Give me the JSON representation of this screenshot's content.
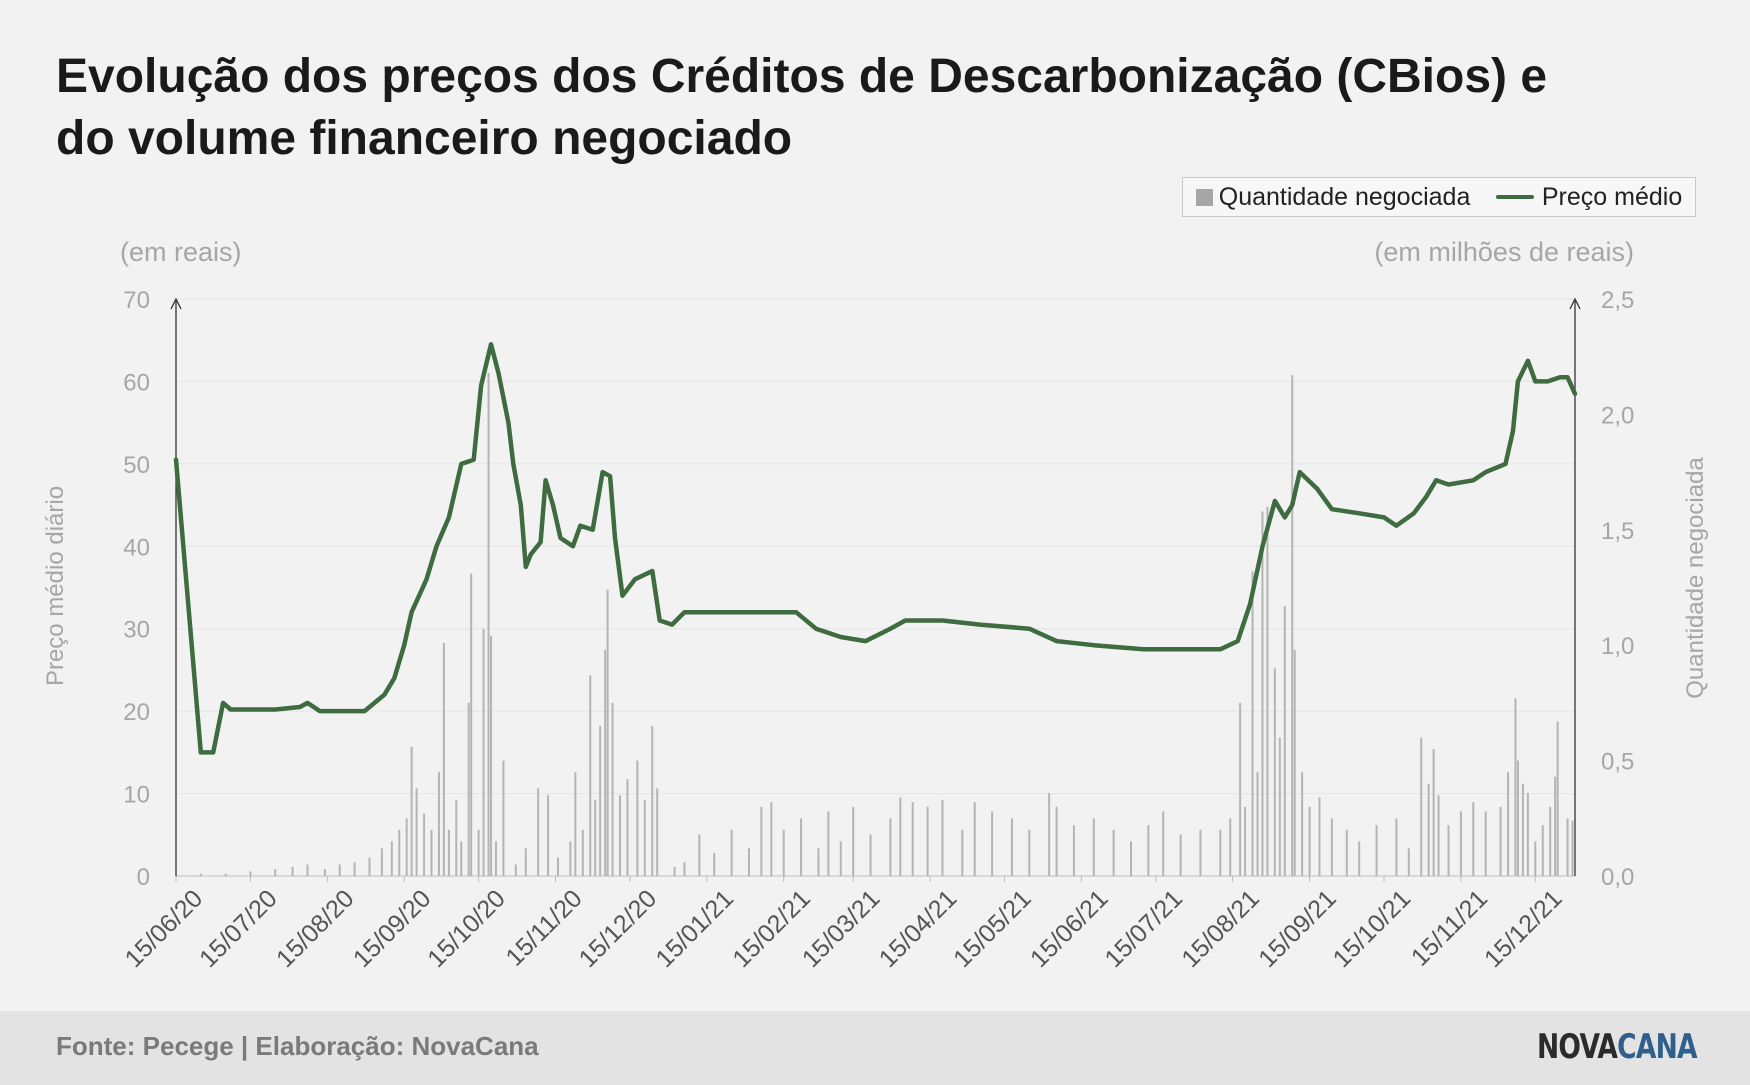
{
  "title": "Evolução dos preços dos Créditos de Descarbonização (CBios) e do volume financeiro negociado",
  "legend": {
    "bars": "Quantidade negociada",
    "line": "Preço médio"
  },
  "footer": {
    "source": "Fonte: Pecege | Elaboração: NovaCana",
    "logo_part1": "NOVA",
    "logo_part2": "CANA"
  },
  "colors": {
    "line": "#3f6b40",
    "bars": "#b4b4b4",
    "axis_text": "#a6a6a6"
  },
  "chart_data": {
    "type": "bar+line",
    "left_unit": "(em reais)",
    "right_unit": "(em milhões de reais)",
    "ylabel_left": "Preço médio diário",
    "ylabel_right": "Quantidade negociada",
    "ylim_left": [
      0,
      70
    ],
    "ylim_right": [
      0,
      2.5
    ],
    "yticks_left": [
      "0",
      "10",
      "20",
      "30",
      "40",
      "50",
      "60",
      "70"
    ],
    "yticks_right": [
      "0,0",
      "0,5",
      "1,0",
      "1,5",
      "2,0",
      "2,5"
    ],
    "x_range": [
      "2020-06-15",
      "2021-12-31"
    ],
    "xtick_labels": [
      "15/06/20",
      "15/07/20",
      "15/08/20",
      "15/09/20",
      "15/10/20",
      "15/11/20",
      "15/12/20",
      "15/01/21",
      "15/02/21",
      "15/03/21",
      "15/04/21",
      "15/05/21",
      "15/06/21",
      "15/07/21",
      "15/08/21",
      "15/09/21",
      "15/10/21",
      "15/11/21",
      "15/12/21"
    ],
    "xtick_dates": [
      "2020-06-15",
      "2020-07-15",
      "2020-08-15",
      "2020-09-15",
      "2020-10-15",
      "2020-11-15",
      "2020-12-15",
      "2021-01-15",
      "2021-02-15",
      "2021-03-15",
      "2021-04-15",
      "2021-05-15",
      "2021-06-15",
      "2021-07-15",
      "2021-08-15",
      "2021-09-15",
      "2021-10-15",
      "2021-11-15",
      "2021-12-15"
    ],
    "grid": true,
    "series": [
      {
        "name": "Preço médio",
        "axis": "left",
        "style": "line",
        "points": [
          [
            "2020-06-15",
            50.5
          ],
          [
            "2020-06-25",
            15.0
          ],
          [
            "2020-06-30",
            15.0
          ],
          [
            "2020-07-04",
            21.0
          ],
          [
            "2020-07-07",
            20.2
          ],
          [
            "2020-07-25",
            20.2
          ],
          [
            "2020-08-04",
            20.5
          ],
          [
            "2020-08-07",
            21.0
          ],
          [
            "2020-08-12",
            20.0
          ],
          [
            "2020-08-30",
            20.0
          ],
          [
            "2020-09-07",
            22.0
          ],
          [
            "2020-09-11",
            24.0
          ],
          [
            "2020-09-15",
            28.0
          ],
          [
            "2020-09-18",
            32.0
          ],
          [
            "2020-09-24",
            36.0
          ],
          [
            "2020-09-28",
            40.0
          ],
          [
            "2020-10-03",
            43.5
          ],
          [
            "2020-10-08",
            50.0
          ],
          [
            "2020-10-13",
            50.5
          ],
          [
            "2020-10-16",
            59.5
          ],
          [
            "2020-10-20",
            64.5
          ],
          [
            "2020-10-23",
            61.0
          ],
          [
            "2020-10-27",
            55.0
          ],
          [
            "2020-10-29",
            50.0
          ],
          [
            "2020-11-01",
            45.0
          ],
          [
            "2020-11-03",
            37.5
          ],
          [
            "2020-11-05",
            39.0
          ],
          [
            "2020-11-09",
            40.5
          ],
          [
            "2020-11-11",
            48.0
          ],
          [
            "2020-11-14",
            45.0
          ],
          [
            "2020-11-17",
            41.0
          ],
          [
            "2020-11-22",
            40.0
          ],
          [
            "2020-11-25",
            42.5
          ],
          [
            "2020-11-30",
            42.0
          ],
          [
            "2020-12-04",
            49.0
          ],
          [
            "2020-12-07",
            48.5
          ],
          [
            "2020-12-09",
            41.0
          ],
          [
            "2020-12-12",
            34.0
          ],
          [
            "2020-12-17",
            36.0
          ],
          [
            "2020-12-24",
            37.0
          ],
          [
            "2020-12-27",
            31.0
          ],
          [
            "2021-01-01",
            30.5
          ],
          [
            "2021-01-06",
            32.0
          ],
          [
            "2021-01-20",
            32.0
          ],
          [
            "2021-02-05",
            32.0
          ],
          [
            "2021-02-20",
            32.0
          ],
          [
            "2021-02-28",
            30.0
          ],
          [
            "2021-03-10",
            29.0
          ],
          [
            "2021-03-20",
            28.5
          ],
          [
            "2021-03-30",
            30.0
          ],
          [
            "2021-04-05",
            31.0
          ],
          [
            "2021-04-20",
            31.0
          ],
          [
            "2021-05-05",
            30.5
          ],
          [
            "2021-05-25",
            30.0
          ],
          [
            "2021-06-05",
            28.5
          ],
          [
            "2021-06-20",
            28.0
          ],
          [
            "2021-07-10",
            27.5
          ],
          [
            "2021-07-25",
            27.5
          ],
          [
            "2021-08-10",
            27.5
          ],
          [
            "2021-08-17",
            28.5
          ],
          [
            "2021-08-22",
            33.0
          ],
          [
            "2021-08-27",
            40.0
          ],
          [
            "2021-09-01",
            45.5
          ],
          [
            "2021-09-05",
            43.5
          ],
          [
            "2021-09-08",
            45.0
          ],
          [
            "2021-09-11",
            49.0
          ],
          [
            "2021-09-18",
            47.0
          ],
          [
            "2021-09-24",
            44.5
          ],
          [
            "2021-10-05",
            44.0
          ],
          [
            "2021-10-15",
            43.5
          ],
          [
            "2021-10-20",
            42.5
          ],
          [
            "2021-10-27",
            44.0
          ],
          [
            "2021-11-01",
            46.0
          ],
          [
            "2021-11-05",
            48.0
          ],
          [
            "2021-11-10",
            47.5
          ],
          [
            "2021-11-20",
            48.0
          ],
          [
            "2021-11-25",
            49.0
          ],
          [
            "2021-12-03",
            50.0
          ],
          [
            "2021-12-06",
            54.0
          ],
          [
            "2021-12-08",
            60.0
          ],
          [
            "2021-12-12",
            62.5
          ],
          [
            "2021-12-15",
            60.0
          ],
          [
            "2021-12-20",
            60.0
          ],
          [
            "2021-12-25",
            60.5
          ],
          [
            "2021-12-28",
            60.5
          ],
          [
            "2021-12-31",
            58.5
          ]
        ]
      },
      {
        "name": "Quantidade negociada",
        "axis": "right",
        "style": "bars",
        "points": [
          [
            "2020-06-25",
            0.01
          ],
          [
            "2020-07-05",
            0.01
          ],
          [
            "2020-07-15",
            0.02
          ],
          [
            "2020-07-25",
            0.03
          ],
          [
            "2020-08-01",
            0.04
          ],
          [
            "2020-08-07",
            0.05
          ],
          [
            "2020-08-14",
            0.03
          ],
          [
            "2020-08-20",
            0.05
          ],
          [
            "2020-08-26",
            0.06
          ],
          [
            "2020-09-01",
            0.08
          ],
          [
            "2020-09-06",
            0.12
          ],
          [
            "2020-09-10",
            0.15
          ],
          [
            "2020-09-13",
            0.2
          ],
          [
            "2020-09-16",
            0.25
          ],
          [
            "2020-09-18",
            0.56
          ],
          [
            "2020-09-20",
            0.38
          ],
          [
            "2020-09-23",
            0.27
          ],
          [
            "2020-09-26",
            0.2
          ],
          [
            "2020-09-29",
            0.45
          ],
          [
            "2020-10-01",
            1.01
          ],
          [
            "2020-10-03",
            0.2
          ],
          [
            "2020-10-06",
            0.33
          ],
          [
            "2020-10-08",
            0.15
          ],
          [
            "2020-10-11",
            0.75
          ],
          [
            "2020-10-12",
            1.31
          ],
          [
            "2020-10-15",
            0.2
          ],
          [
            "2020-10-17",
            1.07
          ],
          [
            "2020-10-19",
            2.18
          ],
          [
            "2020-10-20",
            1.04
          ],
          [
            "2020-10-22",
            0.15
          ],
          [
            "2020-10-25",
            0.5
          ],
          [
            "2020-10-30",
            0.05
          ],
          [
            "2020-11-03",
            0.12
          ],
          [
            "2020-11-08",
            0.38
          ],
          [
            "2020-11-12",
            0.35
          ],
          [
            "2020-11-16",
            0.08
          ],
          [
            "2020-11-21",
            0.15
          ],
          [
            "2020-11-23",
            0.45
          ],
          [
            "2020-11-26",
            0.2
          ],
          [
            "2020-11-29",
            0.87
          ],
          [
            "2020-12-01",
            0.33
          ],
          [
            "2020-12-03",
            0.65
          ],
          [
            "2020-12-05",
            0.98
          ],
          [
            "2020-12-06",
            1.24
          ],
          [
            "2020-12-08",
            0.75
          ],
          [
            "2020-12-11",
            0.35
          ],
          [
            "2020-12-14",
            0.42
          ],
          [
            "2020-12-18",
            0.5
          ],
          [
            "2020-12-21",
            0.33
          ],
          [
            "2020-12-24",
            0.65
          ],
          [
            "2020-12-26",
            0.38
          ],
          [
            "2021-01-02",
            0.04
          ],
          [
            "2021-01-06",
            0.06
          ],
          [
            "2021-01-12",
            0.18
          ],
          [
            "2021-01-18",
            0.1
          ],
          [
            "2021-01-25",
            0.2
          ],
          [
            "2021-02-01",
            0.12
          ],
          [
            "2021-02-06",
            0.3
          ],
          [
            "2021-02-10",
            0.32
          ],
          [
            "2021-02-15",
            0.2
          ],
          [
            "2021-02-22",
            0.25
          ],
          [
            "2021-03-01",
            0.12
          ],
          [
            "2021-03-05",
            0.28
          ],
          [
            "2021-03-10",
            0.15
          ],
          [
            "2021-03-15",
            0.3
          ],
          [
            "2021-03-22",
            0.18
          ],
          [
            "2021-03-30",
            0.25
          ],
          [
            "2021-04-03",
            0.34
          ],
          [
            "2021-04-08",
            0.32
          ],
          [
            "2021-04-14",
            0.3
          ],
          [
            "2021-04-20",
            0.33
          ],
          [
            "2021-04-28",
            0.2
          ],
          [
            "2021-05-03",
            0.32
          ],
          [
            "2021-05-10",
            0.28
          ],
          [
            "2021-05-18",
            0.25
          ],
          [
            "2021-05-25",
            0.2
          ],
          [
            "2021-06-02",
            0.36
          ],
          [
            "2021-06-05",
            0.3
          ],
          [
            "2021-06-12",
            0.22
          ],
          [
            "2021-06-20",
            0.25
          ],
          [
            "2021-06-28",
            0.2
          ],
          [
            "2021-07-05",
            0.15
          ],
          [
            "2021-07-12",
            0.22
          ],
          [
            "2021-07-18",
            0.28
          ],
          [
            "2021-07-25",
            0.18
          ],
          [
            "2021-08-02",
            0.2
          ],
          [
            "2021-08-10",
            0.2
          ],
          [
            "2021-08-14",
            0.25
          ],
          [
            "2021-08-18",
            0.75
          ],
          [
            "2021-08-20",
            0.3
          ],
          [
            "2021-08-23",
            1.32
          ],
          [
            "2021-08-25",
            0.45
          ],
          [
            "2021-08-27",
            1.58
          ],
          [
            "2021-08-29",
            1.6
          ],
          [
            "2021-09-01",
            0.9
          ],
          [
            "2021-09-03",
            0.6
          ],
          [
            "2021-09-05",
            1.17
          ],
          [
            "2021-09-08",
            2.17
          ],
          [
            "2021-09-09",
            0.98
          ],
          [
            "2021-09-12",
            0.45
          ],
          [
            "2021-09-15",
            0.3
          ],
          [
            "2021-09-19",
            0.34
          ],
          [
            "2021-09-24",
            0.25
          ],
          [
            "2021-09-30",
            0.2
          ],
          [
            "2021-10-05",
            0.15
          ],
          [
            "2021-10-12",
            0.22
          ],
          [
            "2021-10-20",
            0.25
          ],
          [
            "2021-10-25",
            0.12
          ],
          [
            "2021-10-30",
            0.6
          ],
          [
            "2021-11-02",
            0.4
          ],
          [
            "2021-11-04",
            0.55
          ],
          [
            "2021-11-06",
            0.35
          ],
          [
            "2021-11-10",
            0.22
          ],
          [
            "2021-11-15",
            0.28
          ],
          [
            "2021-11-20",
            0.32
          ],
          [
            "2021-11-25",
            0.28
          ],
          [
            "2021-12-01",
            0.3
          ],
          [
            "2021-12-04",
            0.45
          ],
          [
            "2021-12-07",
            0.77
          ],
          [
            "2021-12-08",
            0.5
          ],
          [
            "2021-12-10",
            0.4
          ],
          [
            "2021-12-12",
            0.36
          ],
          [
            "2021-12-15",
            0.15
          ],
          [
            "2021-12-18",
            0.22
          ],
          [
            "2021-12-21",
            0.3
          ],
          [
            "2021-12-23",
            0.43
          ],
          [
            "2021-12-24",
            0.67
          ],
          [
            "2021-12-28",
            0.25
          ],
          [
            "2021-12-30",
            0.24
          ]
        ]
      }
    ]
  }
}
